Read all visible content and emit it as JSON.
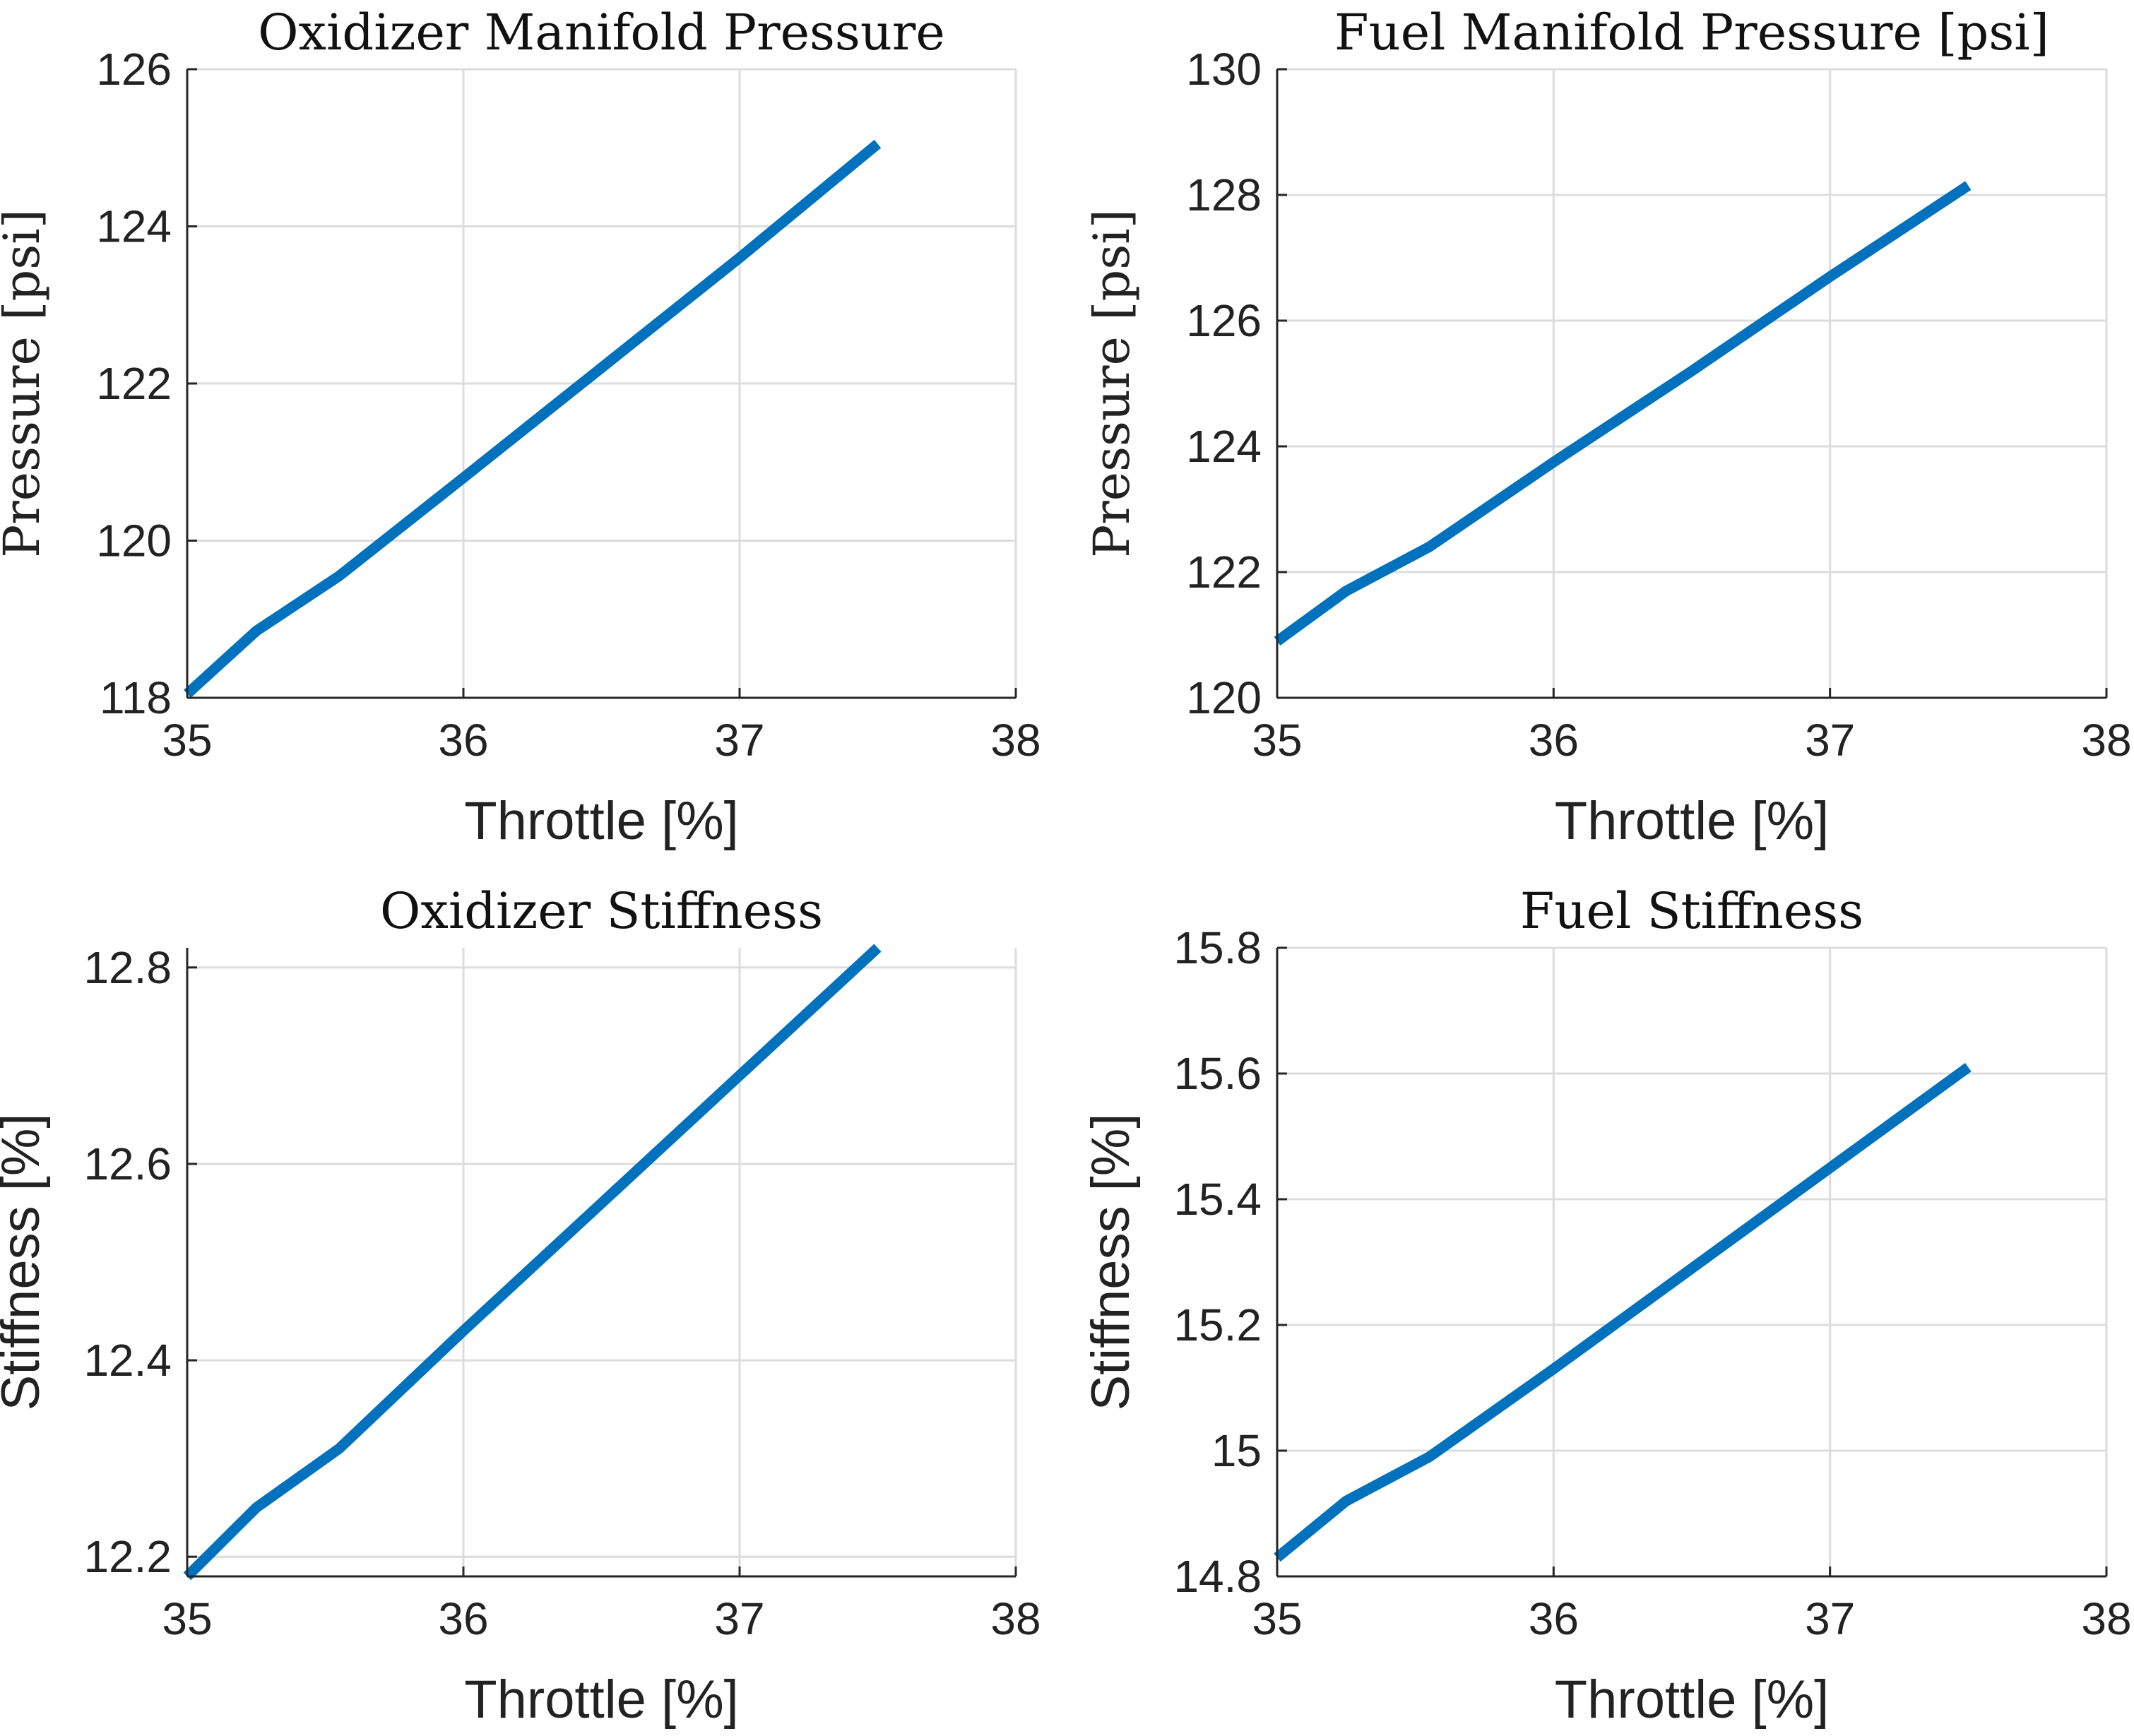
{
  "colors": {
    "series": "#0072BD"
  },
  "chart_data": [
    {
      "type": "line",
      "title": "Oxidizer Manifold Pressure",
      "title_font": "serif",
      "xlabel": "Throttle [%]",
      "ylabel": "Pressure [psi]",
      "ylabel_font": "serif",
      "xlim": [
        35,
        38
      ],
      "ylim": [
        118,
        126
      ],
      "xticks": [
        35,
        36,
        37,
        38
      ],
      "yticks": [
        118,
        120,
        122,
        124,
        126
      ],
      "ytick_labels": [
        "118",
        "120",
        "122",
        "124",
        "126"
      ],
      "grid": true,
      "x": [
        35,
        35.25,
        35.55,
        36,
        36.5,
        37,
        37.5
      ],
      "y": [
        118.05,
        118.85,
        119.55,
        120.8,
        122.2,
        123.6,
        125.05
      ]
    },
    {
      "type": "line",
      "title": "Fuel Manifold Pressure [psi]",
      "title_font": "serif",
      "xlabel": "Throttle [%]",
      "ylabel": "Pressure [psi]",
      "ylabel_font": "serif",
      "xlim": [
        35,
        38
      ],
      "ylim": [
        120,
        130
      ],
      "xticks": [
        35,
        36,
        37,
        38
      ],
      "yticks": [
        120,
        122,
        124,
        126,
        128,
        130
      ],
      "ytick_labels": [
        "120",
        "122",
        "124",
        "126",
        "128",
        "130"
      ],
      "grid": true,
      "x": [
        35,
        35.25,
        35.55,
        36,
        36.5,
        37,
        37.5
      ],
      "y": [
        120.9,
        121.7,
        122.4,
        123.75,
        125.2,
        126.7,
        128.15
      ]
    },
    {
      "type": "line",
      "title": "Oxidizer Stiffness",
      "title_font": "serif",
      "xlabel": "Throttle [%]",
      "ylabel": "Stiffness [%]",
      "ylabel_font": "sans",
      "xlim": [
        35,
        38
      ],
      "ylim": [
        12.18,
        12.82
      ],
      "xticks": [
        35,
        36,
        37,
        38
      ],
      "yticks": [
        12.2,
        12.4,
        12.6,
        12.8
      ],
      "ytick_labels": [
        "12.2",
        "12.4",
        "12.6",
        "12.8"
      ],
      "grid": true,
      "x": [
        35,
        35.25,
        35.55,
        36,
        36.5,
        37,
        37.5
      ],
      "y": [
        12.18,
        12.25,
        12.31,
        12.43,
        12.56,
        12.69,
        12.82
      ]
    },
    {
      "type": "line",
      "title": "Fuel Stiffness",
      "title_font": "serif",
      "xlabel": "Throttle [%]",
      "ylabel": "Stiffness [%]",
      "ylabel_font": "sans",
      "xlim": [
        35,
        38
      ],
      "ylim": [
        14.8,
        15.8
      ],
      "xticks": [
        35,
        36,
        37,
        38
      ],
      "yticks": [
        14.8,
        15,
        15.2,
        15.4,
        15.6,
        15.8
      ],
      "ytick_labels": [
        "14.8",
        "15",
        "15.2",
        "15.4",
        "15.6",
        "15.8"
      ],
      "grid": true,
      "x": [
        35,
        35.25,
        35.55,
        36,
        36.5,
        37,
        37.5
      ],
      "y": [
        14.83,
        14.92,
        14.99,
        15.13,
        15.29,
        15.45,
        15.61
      ]
    }
  ]
}
